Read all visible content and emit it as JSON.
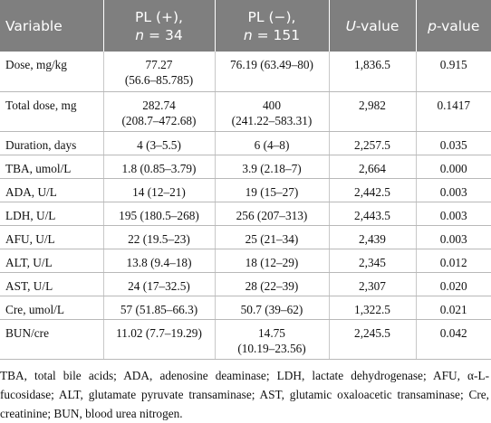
{
  "table": {
    "headers": {
      "variable": "Variable",
      "pl_pos_line1": "PL (+),",
      "pl_pos_n": "n",
      "pl_pos_line2_rest": " = 34",
      "pl_neg_line1": "PL (−),",
      "pl_neg_n": "n",
      "pl_neg_line2_rest": " = 151",
      "u_letter": "U",
      "u_rest": "-value",
      "p_letter": "p",
      "p_rest": "-value"
    },
    "rows": [
      {
        "variable": "Dose, mg/kg",
        "pl_pos_1": "77.27",
        "pl_pos_2": "(56.6–85.785)",
        "pl_neg_1": "76.19 (63.49–80)",
        "pl_neg_2": "",
        "u": "1,836.5",
        "p": "0.915"
      },
      {
        "variable": "Total dose, mg",
        "pl_pos_1": "282.74",
        "pl_pos_2": "(208.7–472.68)",
        "pl_neg_1": "400",
        "pl_neg_2": "(241.22–583.31)",
        "u": "2,982",
        "p": "0.1417"
      },
      {
        "variable": "Duration, days",
        "pl_pos_1": "4 (3–5.5)",
        "pl_neg_1": "6 (4–8)",
        "u": "2,257.5",
        "p": "0.035"
      },
      {
        "variable": "TBA, umol/L",
        "pl_pos_1": "1.8 (0.85–3.79)",
        "pl_neg_1": "3.9 (2.18–7)",
        "u": "2,664",
        "p": "0.000"
      },
      {
        "variable": "ADA, U/L",
        "pl_pos_1": "14 (12–21)",
        "pl_neg_1": "19 (15–27)",
        "u": "2,442.5",
        "p": "0.003"
      },
      {
        "variable": "LDH, U/L",
        "pl_pos_1": "195 (180.5–268)",
        "pl_neg_1": "256 (207–313)",
        "u": "2,443.5",
        "p": "0.003"
      },
      {
        "variable": "AFU, U/L",
        "pl_pos_1": "22 (19.5–23)",
        "pl_neg_1": "25 (21–34)",
        "u": "2,439",
        "p": "0.003"
      },
      {
        "variable": "ALT, U/L",
        "pl_pos_1": "13.8 (9.4–18)",
        "pl_neg_1": "18 (12–29)",
        "u": "2,345",
        "p": "0.012"
      },
      {
        "variable": "AST, U/L",
        "pl_pos_1": "24 (17–32.5)",
        "pl_neg_1": "28 (22–39)",
        "u": "2,307",
        "p": "0.020"
      },
      {
        "variable": "Cre, umol/L",
        "pl_pos_1": "57 (51.85–66.3)",
        "pl_neg_1": "50.7 (39–62)",
        "u": "1,322.5",
        "p": "0.021"
      },
      {
        "variable": "BUN/cre",
        "pl_pos_1": "11.02 (7.7–19.29)",
        "pl_pos_2": "",
        "pl_neg_1": "14.75",
        "pl_neg_2": "(10.19–23.56)",
        "u": "2,245.5",
        "p": "0.042"
      }
    ]
  },
  "footnote": "TBA, total bile acids; ADA, adenosine deaminase; LDH, lactate dehydrogenase; AFU, α-L-fucosidase; ALT, glutamate pyruvate transaminase; AST, glutamic oxaloacetic transaminase; Cre, creatinine; BUN, blood urea nitrogen.",
  "colors": {
    "header_bg": "#7f7f7f",
    "header_text": "#ffffff",
    "rule": "#b8b8b8"
  }
}
